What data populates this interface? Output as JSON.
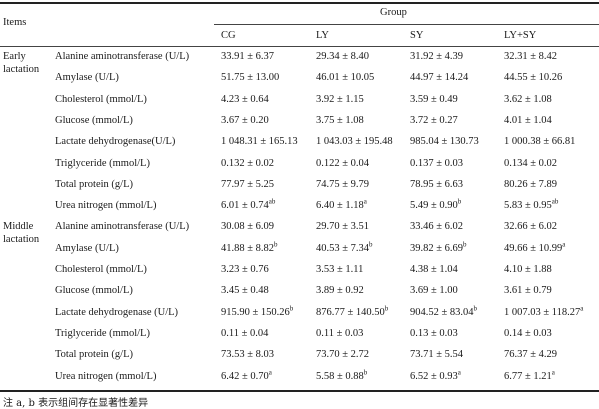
{
  "header": {
    "items_label": "Items",
    "group_label": "Group",
    "groups": [
      "CG",
      "LY",
      "SY",
      "LY+SY"
    ]
  },
  "sections": [
    {
      "label_line1": "Early",
      "label_line2": "lactation",
      "rows": [
        {
          "item": "Alanine aminotransferase (U/L)",
          "values": [
            {
              "v": "33.91 ± 6.37",
              "s": ""
            },
            {
              "v": "29.34 ± 8.40",
              "s": ""
            },
            {
              "v": "31.92 ± 4.39",
              "s": ""
            },
            {
              "v": "32.31 ± 8.42",
              "s": ""
            }
          ]
        },
        {
          "item": "Amylase (U/L)",
          "values": [
            {
              "v": "51.75 ± 13.00",
              "s": ""
            },
            {
              "v": "46.01 ± 10.05",
              "s": ""
            },
            {
              "v": "44.97 ± 14.24",
              "s": ""
            },
            {
              "v": "44.55 ± 10.26",
              "s": ""
            }
          ]
        },
        {
          "item": "Cholesterol (mmol/L)",
          "values": [
            {
              "v": "4.23 ± 0.64",
              "s": ""
            },
            {
              "v": "3.92 ± 1.15",
              "s": ""
            },
            {
              "v": "3.59 ± 0.49",
              "s": ""
            },
            {
              "v": "3.62 ± 1.08",
              "s": ""
            }
          ]
        },
        {
          "item": "Glucose (mmol/L)",
          "values": [
            {
              "v": "3.67 ± 0.20",
              "s": ""
            },
            {
              "v": "3.75 ± 1.08",
              "s": ""
            },
            {
              "v": "3.72 ± 0.27",
              "s": ""
            },
            {
              "v": "4.01 ± 1.04",
              "s": ""
            }
          ]
        },
        {
          "item": "Lactate dehydrogenase(U/L)",
          "values": [
            {
              "v": "1 048.31 ± 165.13",
              "s": ""
            },
            {
              "v": "1 043.03 ± 195.48",
              "s": ""
            },
            {
              "v": "985.04 ± 130.73",
              "s": ""
            },
            {
              "v": "1 000.38 ± 66.81",
              "s": ""
            }
          ]
        },
        {
          "item": "Triglyceride (mmol/L)",
          "values": [
            {
              "v": "0.132 ± 0.02",
              "s": ""
            },
            {
              "v": "0.122 ± 0.04",
              "s": ""
            },
            {
              "v": "0.137 ± 0.03",
              "s": ""
            },
            {
              "v": "0.134 ± 0.02",
              "s": ""
            }
          ]
        },
        {
          "item": "Total protein (g/L)",
          "values": [
            {
              "v": "77.97 ± 5.25",
              "s": ""
            },
            {
              "v": "74.75 ± 9.79",
              "s": ""
            },
            {
              "v": "78.95 ± 6.63",
              "s": ""
            },
            {
              "v": "80.26 ± 7.89",
              "s": ""
            }
          ]
        },
        {
          "item": "Urea nitrogen (mmol/L)",
          "values": [
            {
              "v": "6.01 ± 0.74",
              "s": "ab"
            },
            {
              "v": "6.40 ± 1.18",
              "s": "a"
            },
            {
              "v": "5.49 ± 0.90",
              "s": "b"
            },
            {
              "v": "5.83 ± 0.95",
              "s": "ab"
            }
          ]
        }
      ]
    },
    {
      "label_line1": "Middle",
      "label_line2": "lactation",
      "rows": [
        {
          "item": "Alanine aminotransferase (U/L)",
          "values": [
            {
              "v": "30.08 ± 6.09",
              "s": ""
            },
            {
              "v": "29.70 ± 3.51",
              "s": ""
            },
            {
              "v": "33.46 ± 6.02",
              "s": ""
            },
            {
              "v": "32.66 ± 6.02",
              "s": ""
            }
          ]
        },
        {
          "item": "Amylase (U/L)",
          "values": [
            {
              "v": "41.88 ± 8.82",
              "s": "b"
            },
            {
              "v": "40.53 ± 7.34",
              "s": "b"
            },
            {
              "v": "39.82 ± 6.69",
              "s": "b"
            },
            {
              "v": "49.66 ± 10.99",
              "s": "a"
            }
          ]
        },
        {
          "item": "Cholesterol (mmol/L)",
          "values": [
            {
              "v": "3.23 ± 0.76",
              "s": ""
            },
            {
              "v": "3.53 ± 1.11",
              "s": ""
            },
            {
              "v": "4.38 ± 1.04",
              "s": ""
            },
            {
              "v": "4.10 ± 1.88",
              "s": ""
            }
          ]
        },
        {
          "item": "Glucose (mmol/L)",
          "values": [
            {
              "v": "3.45 ± 0.48",
              "s": ""
            },
            {
              "v": "3.89 ± 0.92",
              "s": ""
            },
            {
              "v": "3.69 ± 1.00",
              "s": ""
            },
            {
              "v": "3.61 ± 0.79",
              "s": ""
            }
          ]
        },
        {
          "item": "Lactate dehydrogenase (U/L)",
          "values": [
            {
              "v": "915.90 ± 150.26",
              "s": "b"
            },
            {
              "v": "876.77 ± 140.50",
              "s": "b"
            },
            {
              "v": "904.52 ± 83.04",
              "s": "b"
            },
            {
              "v": "1 007.03 ± 118.27",
              "s": "a"
            }
          ]
        },
        {
          "item": "Triglyceride (mmol/L)",
          "values": [
            {
              "v": "0.11 ± 0.04",
              "s": ""
            },
            {
              "v": "0.11 ± 0.03",
              "s": ""
            },
            {
              "v": "0.13 ± 0.03",
              "s": ""
            },
            {
              "v": "0.14 ± 0.03",
              "s": ""
            }
          ]
        },
        {
          "item": "Total protein (g/L)",
          "values": [
            {
              "v": "73.53 ± 8.03",
              "s": ""
            },
            {
              "v": "73.70 ± 2.72",
              "s": ""
            },
            {
              "v": "73.71 ± 5.54",
              "s": ""
            },
            {
              "v": "76.37 ± 4.29",
              "s": ""
            }
          ]
        },
        {
          "item": "Urea nitrogen (mmol/L)",
          "values": [
            {
              "v": "6.42 ± 0.70",
              "s": "a"
            },
            {
              "v": "5.58 ± 0.88",
              "s": "b"
            },
            {
              "v": "6.52 ± 0.93",
              "s": "a"
            },
            {
              "v": "6.77 ± 1.21",
              "s": "a"
            }
          ]
        }
      ]
    }
  ],
  "footnote": "注 a, b 表示组间存在显著性差异"
}
